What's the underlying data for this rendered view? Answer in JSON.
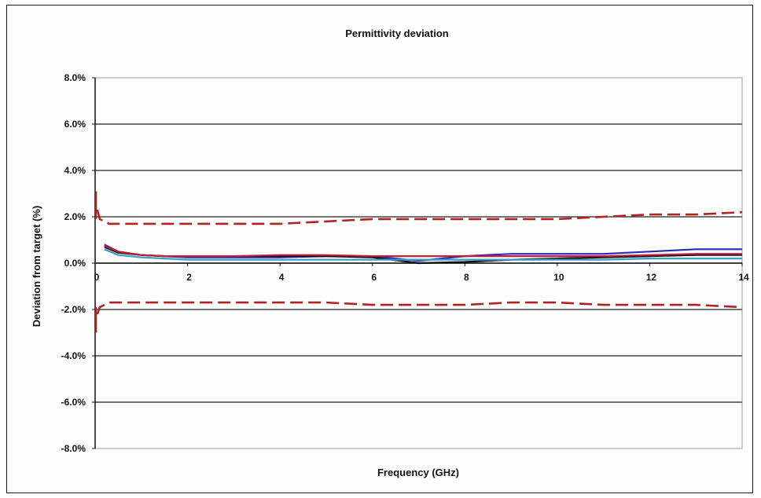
{
  "chart_data": {
    "type": "line",
    "title": "Permittivity deviation",
    "xlabel": "Frequency (GHz)",
    "ylabel": "Deviation from target (%)",
    "xlim": [
      0,
      14
    ],
    "ylim": [
      -8,
      8
    ],
    "x_ticks": [
      "0",
      "2",
      "4",
      "6",
      "8",
      "10",
      "12",
      "14"
    ],
    "y_ticks": [
      "8.0%",
      "6.0%",
      "4.0%",
      "2.0%",
      "0.0%",
      "-2.0%",
      "-4.0%",
      "-6.0%",
      "-8.0%"
    ],
    "grid": true,
    "legend": "none",
    "colors": {
      "limit": "#b22222",
      "blue": "#2a2ab8",
      "black": "#111111",
      "cyan": "#3aa0c8",
      "red": "#c0203a",
      "grid": "#222222"
    },
    "series": [
      {
        "style": "dashed",
        "color_key": "limit",
        "x": [
          0.05,
          0.1,
          0.3,
          1,
          2,
          3,
          4,
          5,
          6,
          7,
          8,
          9,
          10,
          11,
          12,
          13,
          14
        ],
        "y": [
          2.3,
          1.9,
          1.7,
          1.7,
          1.7,
          1.7,
          1.7,
          1.8,
          1.9,
          1.9,
          1.9,
          1.9,
          1.9,
          2.0,
          2.1,
          2.1,
          2.2
        ]
      },
      {
        "style": "dashed",
        "color_key": "limit",
        "x": [
          0.05,
          0.1,
          0.3,
          1,
          2,
          3,
          4,
          5,
          6,
          7,
          8,
          9,
          10,
          11,
          12,
          13,
          14
        ],
        "y": [
          -2.2,
          -1.9,
          -1.7,
          -1.7,
          -1.7,
          -1.7,
          -1.7,
          -1.7,
          -1.8,
          -1.8,
          -1.8,
          -1.7,
          -1.7,
          -1.8,
          -1.8,
          -1.8,
          -1.9
        ]
      },
      {
        "style": "solid",
        "color_key": "blue",
        "x": [
          0.2,
          0.5,
          1,
          1.5,
          2,
          3,
          4,
          5,
          6,
          7,
          8,
          9,
          10,
          11,
          12,
          13,
          14
        ],
        "y": [
          0.8,
          0.5,
          0.35,
          0.3,
          0.25,
          0.25,
          0.25,
          0.3,
          0.3,
          0.1,
          0.3,
          0.4,
          0.4,
          0.4,
          0.5,
          0.6,
          0.6
        ]
      },
      {
        "style": "solid",
        "color_key": "black",
        "x": [
          0.2,
          0.5,
          1,
          1.5,
          2,
          3,
          4,
          5,
          6,
          7,
          8,
          9,
          10,
          11,
          12,
          13,
          14
        ],
        "y": [
          0.7,
          0.45,
          0.35,
          0.3,
          0.3,
          0.3,
          0.3,
          0.3,
          0.25,
          0.0,
          0.05,
          0.15,
          0.2,
          0.25,
          0.3,
          0.35,
          0.35
        ]
      },
      {
        "style": "solid",
        "color_key": "cyan",
        "x": [
          0.2,
          0.5,
          1,
          2,
          3,
          4,
          5,
          6,
          7,
          8,
          9,
          10,
          11,
          12,
          13,
          14
        ],
        "y": [
          0.6,
          0.35,
          0.25,
          0.15,
          0.15,
          0.15,
          0.15,
          0.15,
          0.15,
          0.15,
          0.15,
          0.15,
          0.15,
          0.2,
          0.2,
          0.2
        ]
      },
      {
        "style": "solid",
        "color_key": "red",
        "x": [
          0.2,
          0.5,
          1,
          1.5,
          2,
          3,
          4,
          5,
          6,
          7,
          8,
          9,
          10,
          11,
          12,
          13,
          14
        ],
        "y": [
          0.75,
          0.5,
          0.35,
          0.3,
          0.3,
          0.3,
          0.35,
          0.35,
          0.3,
          0.3,
          0.3,
          0.3,
          0.3,
          0.3,
          0.35,
          0.4,
          0.4
        ]
      },
      {
        "style": "solid",
        "color_key": "limit",
        "x": [
          0.02,
          0.02
        ],
        "y": [
          3.1,
          1.9
        ]
      },
      {
        "style": "solid",
        "color_key": "limit",
        "x": [
          0.02,
          0.02
        ],
        "y": [
          -1.9,
          -3.0
        ]
      }
    ]
  }
}
